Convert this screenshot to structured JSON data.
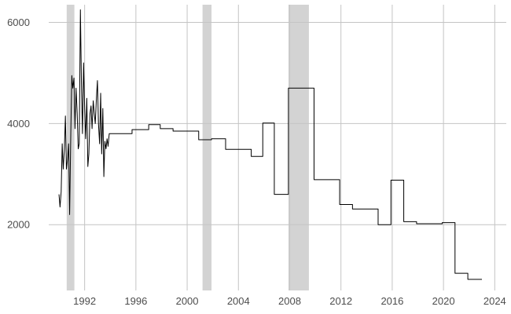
{
  "chart_data": {
    "type": "line",
    "title": "",
    "xlabel": "",
    "ylabel": "",
    "xlim": [
      1989.2,
      2024.9
    ],
    "ylim": [
      700,
      6350
    ],
    "x_ticks": [
      1992,
      1996,
      2000,
      2004,
      2008,
      2012,
      2016,
      2020,
      2024
    ],
    "x_tick_labels": [
      "1992",
      "1996",
      "2000",
      "2004",
      "2008",
      "2012",
      "2016",
      "2020",
      "2024"
    ],
    "y_ticks": [
      2000,
      4000,
      6000
    ],
    "y_tick_labels": [
      "2000",
      "4000",
      "6000"
    ],
    "grid": true,
    "legend": "none",
    "colors": {
      "line": "#000000",
      "grid": "#c4c4c4",
      "shade": "#d3d3d3",
      "tick_text": "#4d4d4d",
      "background": "#ffffff"
    },
    "shaded_periods": [
      {
        "start": 1990.6,
        "end": 1991.2
      },
      {
        "start": 2001.2,
        "end": 2001.9
      },
      {
        "start": 2007.9,
        "end": 2009.5
      }
    ],
    "series": [
      {
        "x": [
          1990.0,
          1990.08,
          1990.17,
          1990.25,
          1990.33,
          1990.42,
          1990.5,
          1990.58,
          1990.67,
          1990.75,
          1990.83,
          1990.92,
          1991.0,
          1991.08,
          1991.17,
          1991.25,
          1991.33,
          1991.42,
          1991.5,
          1991.58,
          1991.67,
          1991.75,
          1991.83,
          1991.92,
          1992.0,
          1992.08,
          1992.17,
          1992.25,
          1992.33,
          1992.42,
          1992.5,
          1992.58,
          1992.67,
          1992.75,
          1992.83,
          1992.92,
          1993.0,
          1993.08,
          1993.17,
          1993.25,
          1993.33,
          1993.42,
          1993.5,
          1993.58,
          1993.67,
          1993.75,
          1993.83,
          1993.92,
          1994.0,
          1994.08,
          1994.17,
          1994.25,
          1994.33,
          1994.42,
          1994.5,
          1994.58,
          1994.67,
          1994.75,
          1994.83,
          1995.0,
          1995.7,
          1995.7,
          1997.0,
          1997.0,
          1997.9,
          1997.9,
          1998.9,
          1998.9,
          2000.9,
          2000.9,
          2001.9,
          2001.9,
          2003.0,
          2003.0,
          2005.0,
          2005.0,
          2005.9,
          2005.9,
          2006.8,
          2006.8,
          2007.0,
          2007.0,
          2007.9,
          2007.9,
          2009.9,
          2009.9,
          2011.9,
          2011.9,
          2012.9,
          2012.9,
          2014.9,
          2014.9,
          2015.9,
          2015.9,
          2016.9,
          2016.9,
          2017.9,
          2017.9,
          2019.9,
          2019.9,
          2020.9,
          2020.9,
          2021.9,
          2021.9,
          2022.9,
          2023.0
        ],
        "y": [
          2600,
          2350,
          2650,
          3600,
          3100,
          3500,
          4150,
          3100,
          3300,
          3600,
          2200,
          3800,
          4950,
          4700,
          4900,
          3900,
          4700,
          4200,
          3500,
          3600,
          6250,
          4800,
          3800,
          5200,
          4300,
          3700,
          4500,
          3150,
          3400,
          4200,
          4350,
          3900,
          4450,
          4200,
          4000,
          4500,
          4850,
          4000,
          3600,
          4600,
          3400,
          4300,
          2950,
          3650,
          3500,
          3700,
          3550,
          3800,
          3800,
          3800,
          3800,
          3800,
          3800,
          3800,
          3800,
          3800,
          3800,
          3800,
          3800,
          3800,
          3800,
          3880,
          3880,
          3980,
          3980,
          3900,
          3900,
          3850,
          3850,
          3680,
          3680,
          3700,
          3700,
          3490,
          3490,
          3350,
          3350,
          4010,
          4010,
          2600,
          2600,
          2600,
          2600,
          4700,
          4700,
          2890,
          2890,
          2400,
          2400,
          2310,
          2310,
          2000,
          2000,
          2880,
          2880,
          2060,
          2060,
          2020,
          2020,
          2040,
          2040,
          1040,
          1040,
          920,
          920,
          920
        ]
      }
    ]
  }
}
